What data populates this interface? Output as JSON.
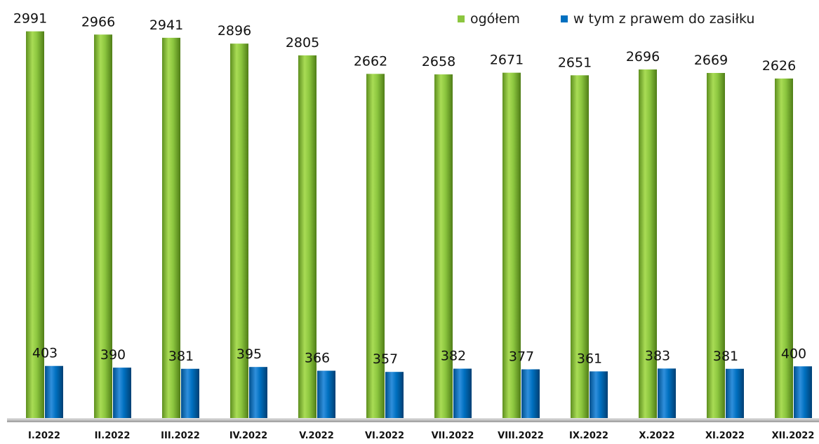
{
  "colors": {
    "total": "#8cc63f",
    "benefit": "#0070c0"
  },
  "chart_data": {
    "type": "bar",
    "categories": [
      "I.2022",
      "II.2022",
      "III.2022",
      "IV.2022",
      "V.2022",
      "VI.2022",
      "VII.2022",
      "VIII.2022",
      "IX.2022",
      "X.2022",
      "XI.2022",
      "XII.2022"
    ],
    "series": [
      {
        "name": "ogółem",
        "values": [
          2991,
          2966,
          2941,
          2896,
          2805,
          2662,
          2658,
          2671,
          2651,
          2696,
          2669,
          2626
        ]
      },
      {
        "name": "w tym z prawem do zasiłku",
        "values": [
          403,
          390,
          381,
          395,
          366,
          357,
          382,
          377,
          361,
          383,
          381,
          400
        ]
      }
    ],
    "title": "",
    "xlabel": "",
    "ylabel": "",
    "ylim": [
      0,
      3000
    ],
    "grid": false,
    "legend": "top-right",
    "data_labels": true
  }
}
